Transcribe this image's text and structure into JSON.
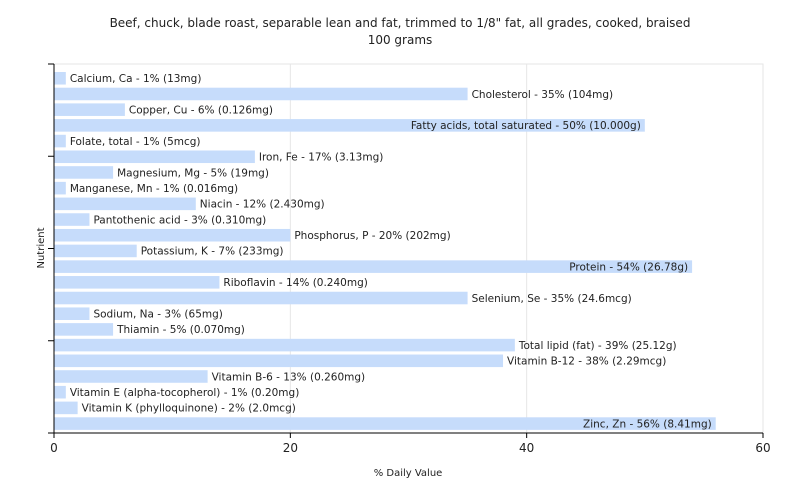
{
  "chart_data": {
    "type": "bar",
    "orientation": "horizontal",
    "title": "Beef, chuck, blade roast, separable lean and fat, trimmed to 1/8\" fat, all grades, cooked, braised",
    "subtitle": "100 grams",
    "xlabel": "% Daily Value",
    "ylabel": "Nutrient",
    "xlim": [
      0,
      60
    ],
    "xticks": [
      0,
      20,
      40,
      60
    ],
    "grid": true,
    "bar_color": "#c6dcfb",
    "categories": [
      "Calcium, Ca",
      "Cholesterol",
      "Copper, Cu",
      "Fatty acids, total saturated",
      "Folate, total",
      "Iron, Fe",
      "Magnesium, Mg",
      "Manganese, Mn",
      "Niacin",
      "Pantothenic acid",
      "Phosphorus, P",
      "Potassium, K",
      "Protein",
      "Riboflavin",
      "Selenium, Se",
      "Sodium, Na",
      "Thiamin",
      "Total lipid (fat)",
      "Vitamin B-12",
      "Vitamin B-6",
      "Vitamin E (alpha-tocopherol)",
      "Vitamin K (phylloquinone)",
      "Zinc, Zn"
    ],
    "values": [
      1,
      35,
      6,
      50,
      1,
      17,
      5,
      1,
      12,
      3,
      20,
      7,
      54,
      14,
      35,
      3,
      5,
      39,
      38,
      13,
      1,
      2,
      56
    ],
    "labels": [
      "Calcium, Ca - 1% (13mg)",
      "Cholesterol - 35% (104mg)",
      "Copper, Cu - 6% (0.126mg)",
      "Fatty acids, total saturated - 50% (10.000g)",
      "Folate, total - 1% (5mcg)",
      "Iron, Fe - 17% (3.13mg)",
      "Magnesium, Mg - 5% (19mg)",
      "Manganese, Mn - 1% (0.016mg)",
      "Niacin - 12% (2.430mg)",
      "Pantothenic acid - 3% (0.310mg)",
      "Phosphorus, P - 20% (202mg)",
      "Potassium, K - 7% (233mg)",
      "Protein - 54% (26.78g)",
      "Riboflavin - 14% (0.240mg)",
      "Selenium, Se - 35% (24.6mcg)",
      "Sodium, Na - 3% (65mg)",
      "Thiamin - 5% (0.070mg)",
      "Total lipid (fat) - 39% (25.12g)",
      "Vitamin B-12 - 38% (2.29mcg)",
      "Vitamin B-6 - 13% (0.260mg)",
      "Vitamin E (alpha-tocopherol) - 1% (0.20mg)",
      "Vitamin K (phylloquinone) - 2% (2.0mcg)",
      "Zinc, Zn - 56% (8.41mg)"
    ]
  }
}
